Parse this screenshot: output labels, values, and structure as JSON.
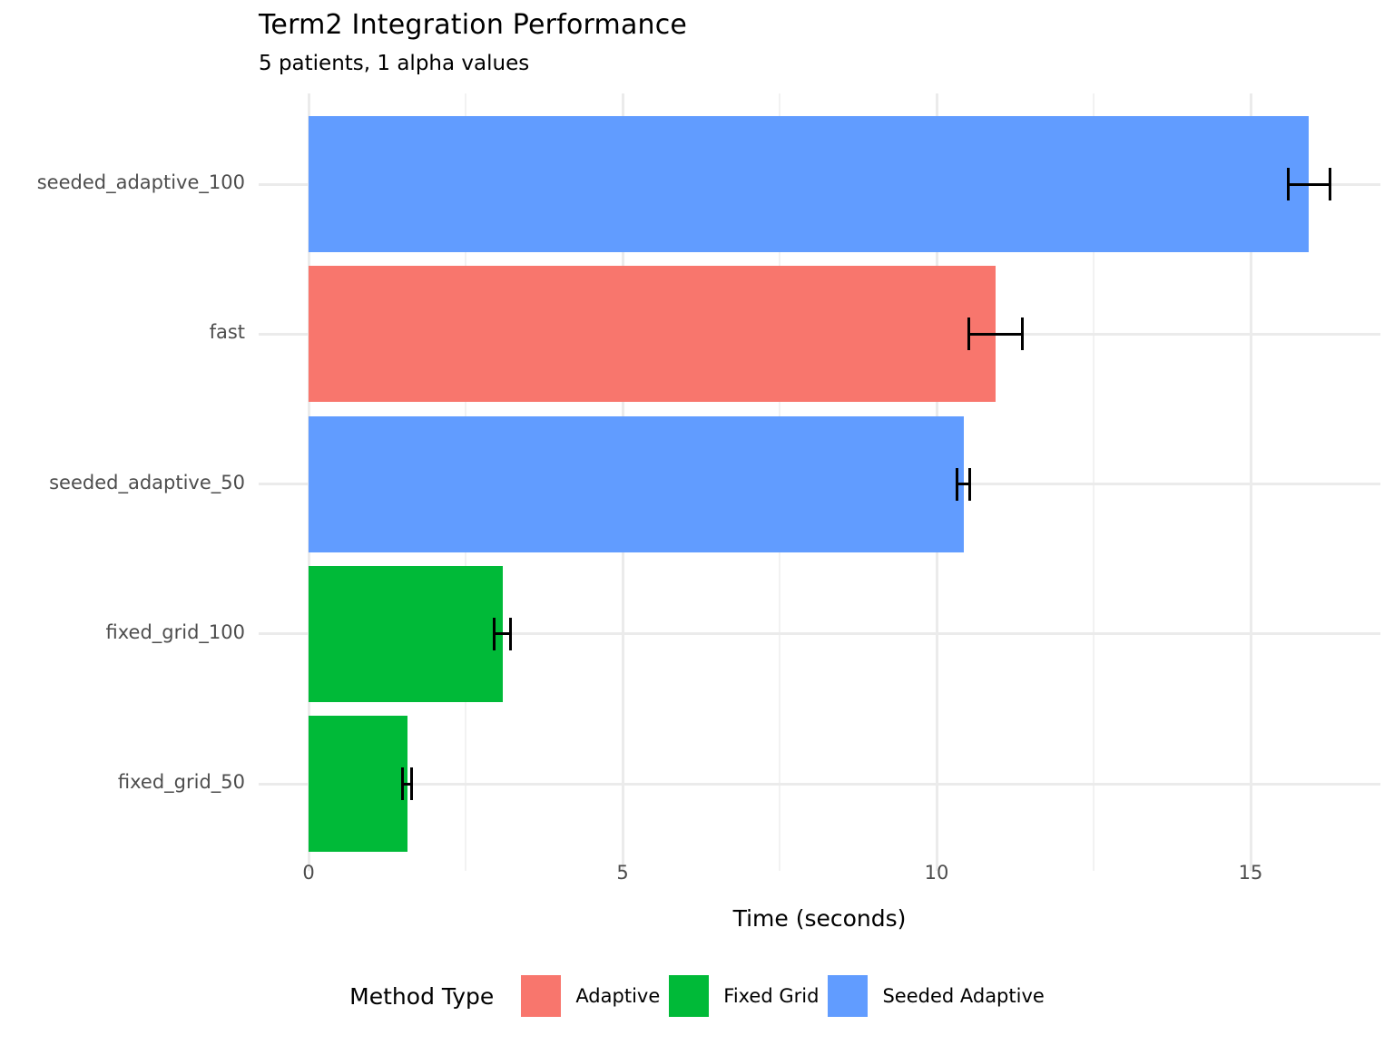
{
  "title": "Term2 Integration Performance",
  "subtitle": "5 patients, 1 alpha values",
  "chart_data": {
    "type": "bar",
    "orientation": "horizontal",
    "title": "Term2 Integration Performance",
    "subtitle": "5 patients, 1 alpha values",
    "xlabel": "Time (seconds)",
    "ylabel": "",
    "xlim": [
      -0.85,
      17.07
    ],
    "x_major_ticks": [
      0,
      5,
      10,
      15
    ],
    "x_minor_ticks": [
      2.5,
      7.5,
      12.5
    ],
    "grid": true,
    "gridline_color": "#ebebeb",
    "background": "#ffffff",
    "categories": [
      "seeded_adaptive_100",
      "fast",
      "seeded_adaptive_50",
      "fixed_grid_100",
      "fixed_grid_50"
    ],
    "values": [
      15.93,
      10.94,
      10.43,
      3.09,
      1.57
    ],
    "errors": [
      0.33,
      0.43,
      0.1,
      0.13,
      0.07
    ],
    "groups": [
      "Seeded Adaptive",
      "Adaptive",
      "Seeded Adaptive",
      "Fixed Grid",
      "Fixed Grid"
    ],
    "error_bar_color": "#000000",
    "colors": {
      "Adaptive": "#F8766D",
      "Fixed Grid": "#00BA38",
      "Seeded Adaptive": "#619CFF"
    },
    "legend": {
      "title": "Method Type",
      "position": "bottom",
      "entries": [
        {
          "label": "Adaptive",
          "color": "#F8766D"
        },
        {
          "label": "Fixed Grid",
          "color": "#00BA38"
        },
        {
          "label": "Seeded Adaptive",
          "color": "#619CFF"
        }
      ]
    }
  }
}
